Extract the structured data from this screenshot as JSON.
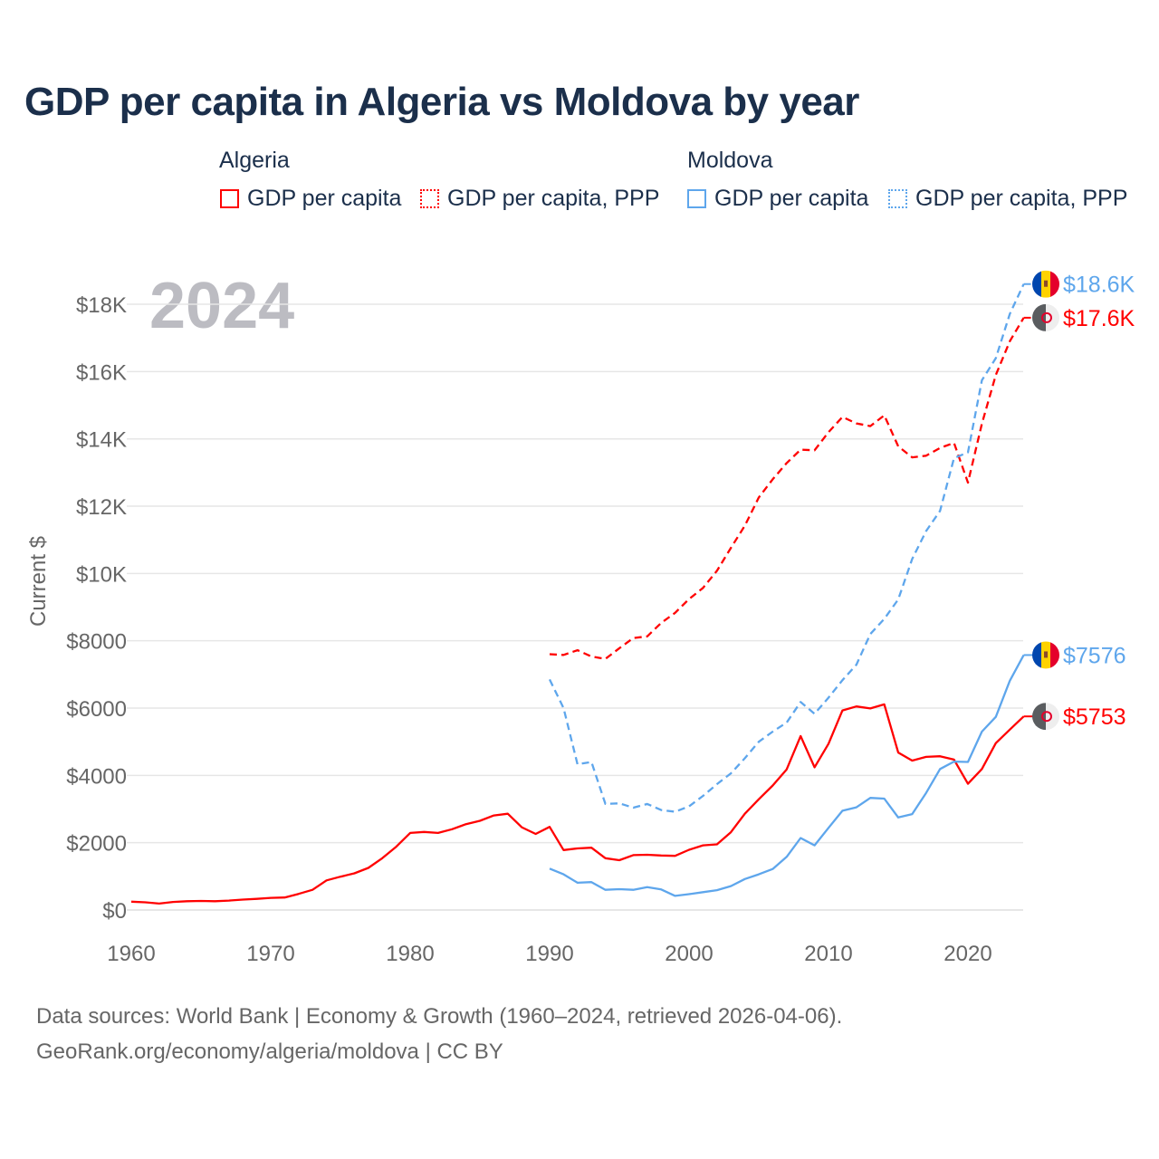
{
  "title": "GDP per capita in Algeria vs Moldova by year",
  "legend": {
    "groups": [
      {
        "name": "Algeria",
        "items": [
          "GDP per capita",
          "GDP per capita, PPP"
        ],
        "color": "#ff0000"
      },
      {
        "name": "Moldova",
        "items": [
          "GDP per capita",
          "GDP per capita, PPP"
        ],
        "color": "#5ea6ec"
      }
    ]
  },
  "year_label": "2024",
  "footer": {
    "line1": "Data sources: World Bank | Economy & Growth (1960–2024, retrieved 2026-04-06).",
    "line2": "GeoRank.org/economy/algeria/moldova | CC BY"
  },
  "chart_data": {
    "type": "line",
    "title": "GDP per capita in Algeria vs Moldova by year",
    "xlabel": "",
    "ylabel": "Current $",
    "xlim": [
      1960,
      2024
    ],
    "ylim": [
      0,
      18600
    ],
    "x_ticks": [
      1960,
      1970,
      1980,
      1990,
      2000,
      2010,
      2020
    ],
    "x_tick_labels": [
      "1960",
      "1970",
      "1980",
      "1990",
      "2000",
      "2010",
      "2020"
    ],
    "y_ticks": [
      0,
      2000,
      4000,
      6000,
      8000,
      10000,
      12000,
      14000,
      16000,
      18000
    ],
    "y_tick_labels": [
      "$0",
      "$2000",
      "$4000",
      "$6000",
      "$8000",
      "$10K",
      "$12K",
      "$14K",
      "$16K",
      "$18K"
    ],
    "grid": true,
    "legend_position": "top",
    "series": [
      {
        "name": "Algeria GDP per capita",
        "country": "Algeria",
        "dashed": false,
        "color": "#ff0000",
        "start_year": 1960,
        "end_label": "$5753",
        "flag": "algeria-flag",
        "values": [
          248,
          230,
          190,
          240,
          260,
          270,
          260,
          280,
          310,
          330,
          360,
          370,
          480,
          600,
          880,
          990,
          1090,
          1250,
          1540,
          1880,
          2290,
          2320,
          2290,
          2400,
          2550,
          2650,
          2810,
          2860,
          2460,
          2260,
          2470,
          1780,
          1830,
          1850,
          1540,
          1480,
          1630,
          1640,
          1620,
          1610,
          1790,
          1920,
          1950,
          2310,
          2860,
          3290,
          3700,
          4180,
          5170,
          4240,
          4940,
          5930,
          6050,
          5990,
          6110,
          4680,
          4440,
          4550,
          4570,
          4470,
          3750,
          4190,
          4960,
          5360,
          5753
        ]
      },
      {
        "name": "Algeria GDP per capita, PPP",
        "country": "Algeria",
        "dashed": true,
        "color": "#ff0000",
        "start_year": 1990,
        "end_label": "$17.6K",
        "flag": "algeria-flag",
        "values": [
          7600,
          7580,
          7720,
          7530,
          7460,
          7780,
          8080,
          8130,
          8530,
          8830,
          9240,
          9570,
          10080,
          10760,
          11420,
          12260,
          12800,
          13280,
          13680,
          13660,
          14200,
          14650,
          14460,
          14380,
          14700,
          13780,
          13450,
          13500,
          13730,
          13880,
          12700,
          14450,
          15900,
          16900,
          17600
        ]
      },
      {
        "name": "Moldova GDP per capita",
        "country": "Moldova",
        "dashed": false,
        "color": "#5ea6ec",
        "start_year": 1990,
        "end_label": "$7576",
        "flag": "moldova-flag",
        "values": [
          1230,
          1060,
          810,
          830,
          600,
          620,
          600,
          680,
          610,
          420,
          470,
          530,
          590,
          710,
          920,
          1060,
          1220,
          1580,
          2140,
          1920,
          2440,
          2950,
          3050,
          3330,
          3310,
          2750,
          2850,
          3480,
          4190,
          4410,
          4400,
          5300,
          5740,
          6810,
          7576
        ]
      },
      {
        "name": "Moldova GDP per capita, PPP",
        "country": "Moldova",
        "dashed": true,
        "color": "#5ea6ec",
        "start_year": 1990,
        "end_label": "$18.6K",
        "flag": "moldova-flag",
        "values": [
          6850,
          6000,
          4330,
          4400,
          3150,
          3170,
          3040,
          3150,
          2970,
          2920,
          3080,
          3390,
          3740,
          4060,
          4510,
          5000,
          5300,
          5570,
          6180,
          5830,
          6310,
          6830,
          7290,
          8200,
          8650,
          9230,
          10430,
          11260,
          11860,
          13430,
          13600,
          15740,
          16400,
          17710,
          18600
        ]
      }
    ]
  }
}
